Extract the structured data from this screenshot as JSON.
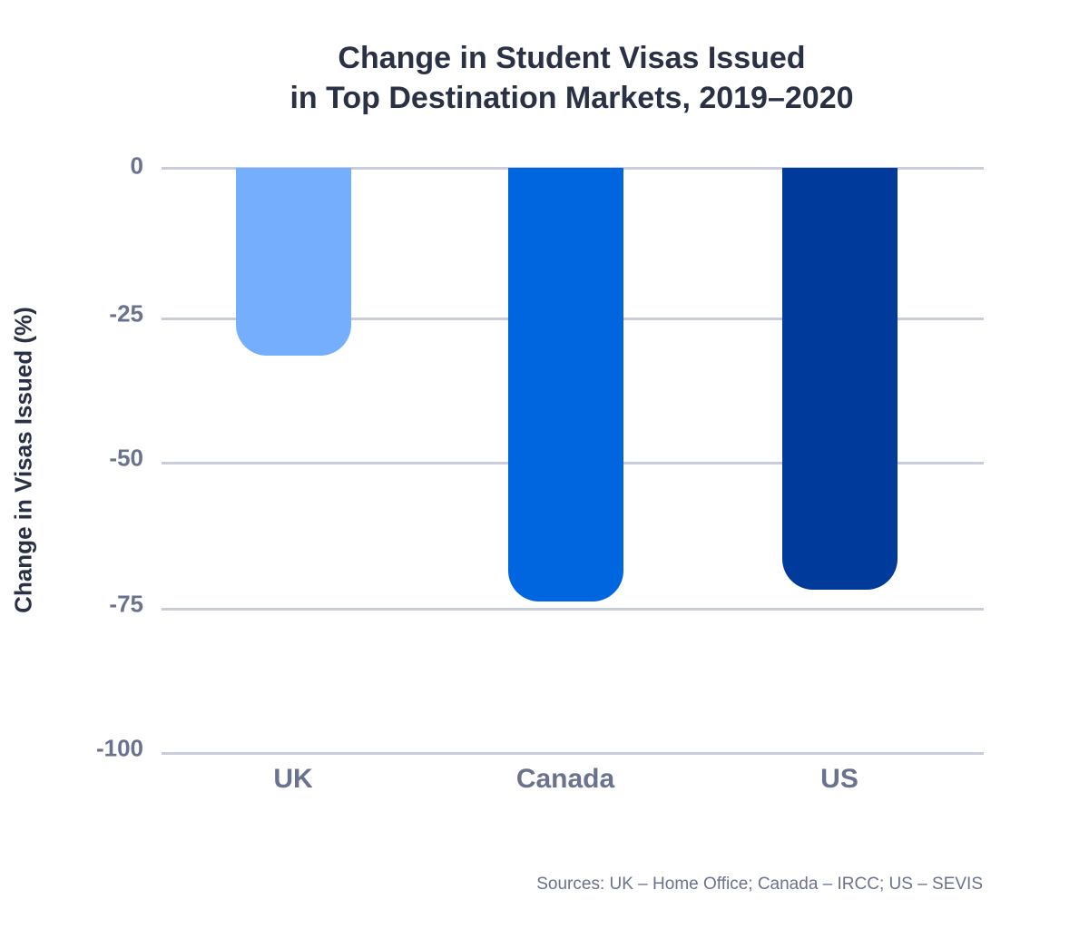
{
  "title_line1": "Change in Student Visas Issued",
  "title_line2": "in Top Destination Markets, 2019–2020",
  "source": "Sources: UK – Home Office; Canada – IRCC; US – SEVIS",
  "chart_data": {
    "type": "bar",
    "title": "Change in Student Visas Issued in Top Destination Markets, 2019–2020",
    "xlabel": "",
    "ylabel": "Change in Visas Issued (%)",
    "categories": [
      "UK",
      "Canada",
      "US"
    ],
    "values": [
      -32,
      -74,
      -72
    ],
    "colors": [
      "#74aefd",
      "#0066e0",
      "#003a9a"
    ],
    "ylim": [
      -100,
      0
    ],
    "yticks": [
      "0",
      "-25",
      "-50",
      "-75",
      "-100"
    ],
    "grid": true,
    "legend": null
  }
}
